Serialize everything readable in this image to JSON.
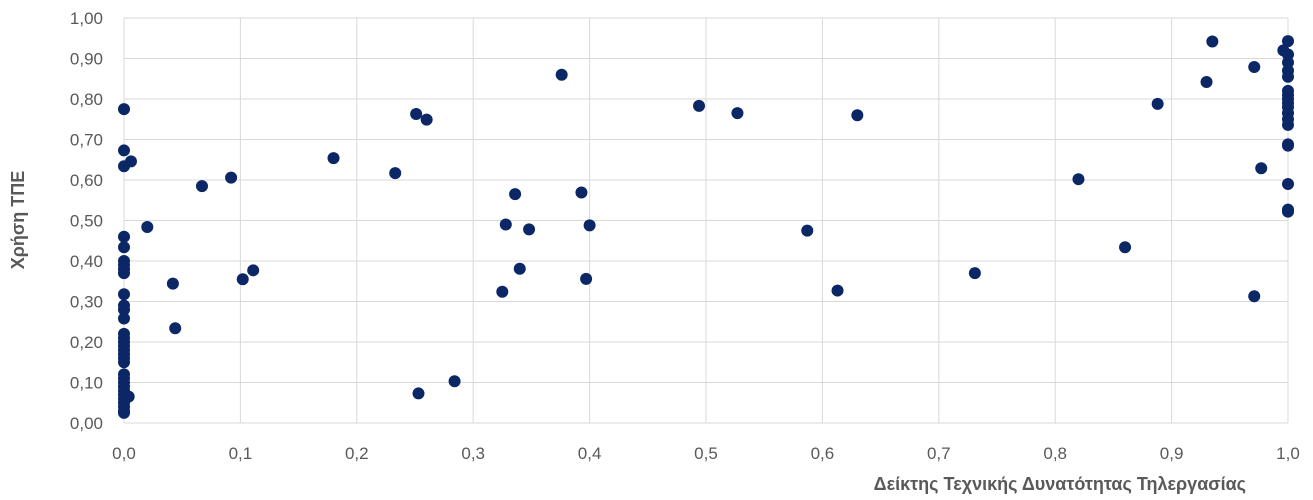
{
  "chart_data": {
    "type": "scatter",
    "xlabel": "Δείκτης Τεχνικής Δυνατότητας Τηλεργασίας",
    "ylabel": "Χρήση ΤΠΕ",
    "xlim": [
      0,
      1
    ],
    "ylim": [
      0,
      1
    ],
    "x_ticks": [
      "0,0",
      "0,1",
      "0,2",
      "0,3",
      "0,4",
      "0,5",
      "0,6",
      "0,7",
      "0,8",
      "0,9",
      "1,0"
    ],
    "y_ticks": [
      "0,00",
      "0,10",
      "0,20",
      "0,30",
      "0,40",
      "0,50",
      "0,60",
      "0,70",
      "0,80",
      "0,90",
      "1,00"
    ],
    "grid": true,
    "legend": "none",
    "marker_color": "#0b2766",
    "points": [
      {
        "x": 0.0,
        "y": 0.775
      },
      {
        "x": 0.0,
        "y": 0.673
      },
      {
        "x": 0.0,
        "y": 0.634
      },
      {
        "x": 0.006,
        "y": 0.646
      },
      {
        "x": 0.0,
        "y": 0.46
      },
      {
        "x": 0.0,
        "y": 0.434
      },
      {
        "x": 0.0,
        "y": 0.4
      },
      {
        "x": 0.0,
        "y": 0.39
      },
      {
        "x": 0.0,
        "y": 0.38
      },
      {
        "x": 0.0,
        "y": 0.37
      },
      {
        "x": 0.0,
        "y": 0.318
      },
      {
        "x": 0.0,
        "y": 0.29
      },
      {
        "x": 0.0,
        "y": 0.28
      },
      {
        "x": 0.0,
        "y": 0.258
      },
      {
        "x": 0.0,
        "y": 0.22
      },
      {
        "x": 0.0,
        "y": 0.21
      },
      {
        "x": 0.0,
        "y": 0.2
      },
      {
        "x": 0.0,
        "y": 0.19
      },
      {
        "x": 0.0,
        "y": 0.18
      },
      {
        "x": 0.0,
        "y": 0.17
      },
      {
        "x": 0.0,
        "y": 0.16
      },
      {
        "x": 0.0,
        "y": 0.15
      },
      {
        "x": 0.0,
        "y": 0.12
      },
      {
        "x": 0.0,
        "y": 0.11
      },
      {
        "x": 0.0,
        "y": 0.1
      },
      {
        "x": 0.0,
        "y": 0.09
      },
      {
        "x": 0.0,
        "y": 0.08
      },
      {
        "x": 0.0,
        "y": 0.07
      },
      {
        "x": 0.0,
        "y": 0.06
      },
      {
        "x": 0.0,
        "y": 0.05
      },
      {
        "x": 0.0,
        "y": 0.04
      },
      {
        "x": 0.0,
        "y": 0.03
      },
      {
        "x": 0.0,
        "y": 0.025
      },
      {
        "x": 0.004,
        "y": 0.065
      },
      {
        "x": 0.02,
        "y": 0.484
      },
      {
        "x": 0.042,
        "y": 0.344
      },
      {
        "x": 0.044,
        "y": 0.234
      },
      {
        "x": 0.067,
        "y": 0.585
      },
      {
        "x": 0.092,
        "y": 0.606
      },
      {
        "x": 0.102,
        "y": 0.355
      },
      {
        "x": 0.111,
        "y": 0.377
      },
      {
        "x": 0.18,
        "y": 0.654
      },
      {
        "x": 0.233,
        "y": 0.617
      },
      {
        "x": 0.251,
        "y": 0.763
      },
      {
        "x": 0.26,
        "y": 0.749
      },
      {
        "x": 0.253,
        "y": 0.073
      },
      {
        "x": 0.284,
        "y": 0.103
      },
      {
        "x": 0.325,
        "y": 0.324
      },
      {
        "x": 0.328,
        "y": 0.49
      },
      {
        "x": 0.336,
        "y": 0.565
      },
      {
        "x": 0.34,
        "y": 0.381
      },
      {
        "x": 0.348,
        "y": 0.478
      },
      {
        "x": 0.376,
        "y": 0.86
      },
      {
        "x": 0.393,
        "y": 0.569
      },
      {
        "x": 0.397,
        "y": 0.356
      },
      {
        "x": 0.4,
        "y": 0.488
      },
      {
        "x": 0.494,
        "y": 0.783
      },
      {
        "x": 0.527,
        "y": 0.765
      },
      {
        "x": 0.587,
        "y": 0.475
      },
      {
        "x": 0.613,
        "y": 0.327
      },
      {
        "x": 0.63,
        "y": 0.76
      },
      {
        "x": 0.731,
        "y": 0.37
      },
      {
        "x": 0.82,
        "y": 0.602
      },
      {
        "x": 0.86,
        "y": 0.434
      },
      {
        "x": 0.888,
        "y": 0.788
      },
      {
        "x": 0.93,
        "y": 0.842
      },
      {
        "x": 0.935,
        "y": 0.942
      },
      {
        "x": 0.971,
        "y": 0.879
      },
      {
        "x": 0.971,
        "y": 0.313
      },
      {
        "x": 0.977,
        "y": 0.629
      },
      {
        "x": 0.996,
        "y": 0.92
      },
      {
        "x": 1.0,
        "y": 0.943
      },
      {
        "x": 1.0,
        "y": 0.91
      },
      {
        "x": 1.0,
        "y": 0.89
      },
      {
        "x": 1.0,
        "y": 0.87
      },
      {
        "x": 1.0,
        "y": 0.855
      },
      {
        "x": 1.0,
        "y": 0.82
      },
      {
        "x": 1.0,
        "y": 0.81
      },
      {
        "x": 1.0,
        "y": 0.8
      },
      {
        "x": 1.0,
        "y": 0.79
      },
      {
        "x": 1.0,
        "y": 0.78
      },
      {
        "x": 1.0,
        "y": 0.765
      },
      {
        "x": 1.0,
        "y": 0.75
      },
      {
        "x": 1.0,
        "y": 0.736
      },
      {
        "x": 1.0,
        "y": 0.688
      },
      {
        "x": 1.0,
        "y": 0.685
      },
      {
        "x": 1.0,
        "y": 0.59
      },
      {
        "x": 1.0,
        "y": 0.527
      },
      {
        "x": 1.0,
        "y": 0.522
      }
    ]
  }
}
